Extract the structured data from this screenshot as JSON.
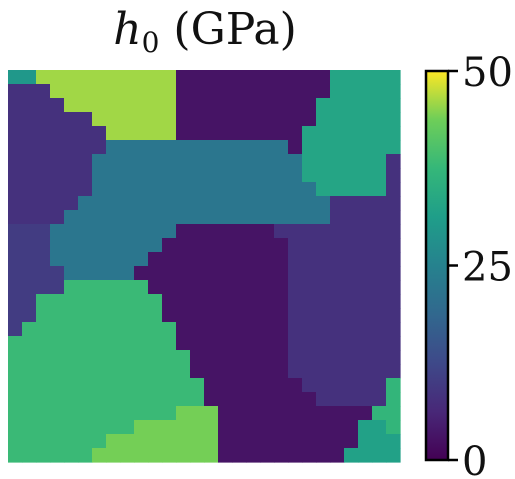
{
  "chart_data": {
    "type": "heatmap",
    "title": "h_0 (GPa)",
    "title_parts": {
      "symbol": "h",
      "subscript": "0",
      "unit": "(GPa)"
    },
    "colormap": "viridis",
    "colorbar": {
      "min": 0,
      "max": 50,
      "ticks": [
        0,
        25,
        50
      ],
      "tick_labels": [
        "0",
        "25",
        "50"
      ]
    },
    "grains": [
      {
        "label": "A",
        "value": 30
      },
      {
        "label": "B",
        "value": 46
      },
      {
        "label": "C",
        "value": 3
      },
      {
        "label": "D",
        "value": 33
      },
      {
        "label": "E",
        "value": 8
      },
      {
        "label": "F",
        "value": 22
      },
      {
        "label": "G",
        "value": 10
      },
      {
        "label": "H",
        "value": 8
      },
      {
        "label": "I",
        "value": 3
      },
      {
        "label": "J",
        "value": 38
      },
      {
        "label": "K",
        "value": 44
      },
      {
        "label": "L",
        "value": 3
      },
      {
        "label": "M",
        "value": 32
      },
      {
        "label": "N",
        "value": 37
      }
    ],
    "grid_rows": [
      "AABBBBBBBBBBCCCCCCCCCCCDDDDD",
      "EEEBBBBBBBBBCCCCCCCCCCCDDDDD",
      "EEEEBBBBBBBBCCCCCCCCCCDDDDDD",
      "EEEEEEBBBBBBCCCCCCCCCCDDDDDD",
      "EEEEEEEBBBBBCCCCCCCCCDDDDDDD",
      "EEEEEEEFFFFFFFFFFFFFCDDDDDDD",
      "EEEEEEFFFFFFFFFFFFFFFDDDDDDH",
      "EEEEEEFFFFFFFFFFFFFFFDDDDDDH",
      "EEEEEEFFFFFFFFFFFFFFFFDDDDDH",
      "EEEEEFFFFFFFFFFFFFFFFFFHHHHH",
      "EEEEFFFFFFFFFFFFFFFFFFFHHHHH",
      "GGGFFFFFFFFFIIIIIIIHHHHHHHHH",
      "GGGFFFFFFFFIIIIIIIIIHHHHHHHH",
      "GGGFFFFFFFIIIIIIIIIIHHHHHHHH",
      "GGGGFFFFFIIIIIIIIIIIHHHHHHHH",
      "GGGGJJJJJJIIIIIIIIIIHHHHHHHH",
      "GGJJJJJJJJJIIIIIIIIIHHHHHHHH",
      "GGJJJJJJJJJIIIIIIIIIHHHHHHHH",
      "GJJJJJJJJJJJIIIIIIIIHHHHHHHH",
      "JJJJJJJJJJJJIIIIIIIIHHHHHHHH",
      "JJJJJJJJJJJJJIIIIIIIHHHHHHHH",
      "JJJJJJJJJJJJJIIIIIIIHHHHHHHH",
      "JJJJJJJJJJJJJJIIIIIIIHHHHHHN",
      "JJJJJJJJJJJJJJIIIIIIIIHHHHHN",
      "JJJJJJJJJJJJKKKLLLLLLLLLLLNN",
      "JJJJJJJJJKKKKKKLLLLLLLLLLMMN",
      "JJJJJJJKKKKKKKKLLLLLLLLLLMMM",
      "JJJJJJKKKKKKKKKLLLLLLLLLMMMM"
    ]
  }
}
